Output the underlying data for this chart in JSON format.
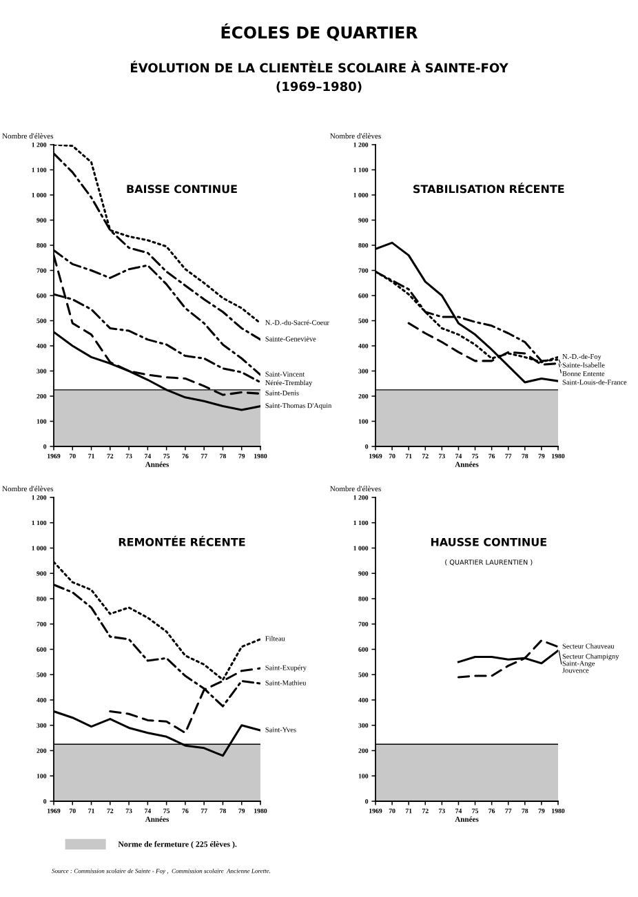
{
  "chart_data": [
    {
      "type": "line",
      "title": "BAISSE CONTINUE",
      "xlabel": "Années",
      "ylabel": "Nombre d'élèves",
      "annotations": [
        "ÉCOLES DE QUARTIER",
        "ÉVOLUTION DE LA CLIENTÈLE SCOLAIRE À SAINTE-FOY",
        "(1969–1980)"
      ],
      "x": [
        1969,
        1970,
        1971,
        1972,
        1973,
        1974,
        1975,
        1976,
        1977,
        1978,
        1979,
        1980
      ],
      "series": [
        {
          "name": "N.-D.-du-Sacré-Coeur",
          "color": "#000000",
          "line_style": "dotted",
          "values": [
            1200,
            1195,
            1130,
            860,
            835,
            820,
            795,
            705,
            650,
            590,
            550,
            490
          ]
        },
        {
          "name": "Sainte-Geneviève",
          "color": "#000000",
          "line_style": "dashdot",
          "values": [
            1165,
            1090,
            990,
            860,
            790,
            770,
            695,
            640,
            585,
            535,
            470,
            425
          ]
        },
        {
          "name": "Saint-Vincent",
          "color": "#000000",
          "line_style": "dashdot",
          "values": [
            780,
            725,
            700,
            670,
            705,
            720,
            645,
            550,
            490,
            405,
            350,
            285
          ]
        },
        {
          "name": "Nérée-Tremblay",
          "color": "#000000",
          "line_style": "dashdot",
          "values": [
            605,
            585,
            545,
            470,
            460,
            425,
            405,
            360,
            350,
            310,
            295,
            255
          ]
        },
        {
          "name": "Saint-Denis",
          "color": "#000000",
          "line_style": "dashed",
          "values": [
            760,
            490,
            445,
            335,
            300,
            285,
            275,
            270,
            240,
            205,
            215,
            210
          ]
        },
        {
          "name": "Saint-Thomas D'Aquin",
          "color": "#000000",
          "line_style": "solid",
          "values": [
            455,
            400,
            355,
            330,
            300,
            265,
            225,
            195,
            180,
            160,
            145,
            160
          ]
        }
      ],
      "bands": [
        {
          "axis": "y",
          "from": 0,
          "to": 225,
          "color": "#c8c8c8"
        }
      ],
      "ref_lines": [
        {
          "axis": "y",
          "value": 225,
          "color": "#000000"
        }
      ],
      "xlim": [
        1969,
        1980
      ],
      "ylim": [
        0,
        1200
      ],
      "xticks": [
        1969,
        {
          "value": 1970,
          "label": "70"
        },
        {
          "value": 1971,
          "label": "71"
        },
        {
          "value": 1972,
          "label": "72"
        },
        {
          "value": 1973,
          "label": "73"
        },
        {
          "value": 1974,
          "label": "74"
        },
        {
          "value": 1975,
          "label": "75"
        },
        {
          "value": 1976,
          "label": "76"
        },
        {
          "value": 1977,
          "label": "77"
        },
        {
          "value": 1978,
          "label": "78"
        },
        {
          "value": 1979,
          "label": "79"
        },
        1980
      ],
      "yticks": [
        0,
        100,
        200,
        300,
        400,
        500,
        600,
        700,
        800,
        900,
        {
          "value": 1000,
          "label": "1 000"
        },
        {
          "value": 1100,
          "label": "1 100"
        },
        {
          "value": 1200,
          "label": "1 200"
        }
      ],
      "grid": false
    },
    {
      "type": "line",
      "title": "STABILISATION RÉCENTE",
      "xlabel": "Années",
      "ylabel": "Nombre d'élèves",
      "x": [
        1969,
        1970,
        1971,
        1972,
        1973,
        1974,
        1975,
        1976,
        1977,
        1978,
        1979,
        1980
      ],
      "series": [
        {
          "name": "Sainte-Isabelle",
          "color": "#000000",
          "line_style": "dashdot",
          "values": [
            695,
            660,
            625,
            535,
            515,
            515,
            495,
            480,
            450,
            415,
            340,
            345
          ]
        },
        {
          "name": "N.-D.-de-Foy",
          "color": "#000000",
          "line_style": "dotted",
          "values": [
            695,
            655,
            605,
            535,
            470,
            445,
            405,
            350,
            370,
            355,
            335,
            355
          ]
        },
        {
          "name": "Bonne Entente",
          "color": "#000000",
          "line_style": "dashed",
          "x": [
            1971,
            1972,
            1973,
            1974,
            1975,
            1976,
            1977,
            1978,
            1979,
            1980
          ],
          "values": [
            490,
            450,
            415,
            375,
            340,
            340,
            375,
            370,
            325,
            330
          ]
        },
        {
          "name": "Saint-Louis-de-France",
          "color": "#000000",
          "line_style": "solid",
          "values": [
            785,
            810,
            760,
            655,
            600,
            490,
            445,
            385,
            320,
            255,
            270,
            260
          ]
        }
      ],
      "bands": [
        {
          "axis": "y",
          "from": 0,
          "to": 225,
          "color": "#c8c8c8"
        }
      ],
      "ref_lines": [
        {
          "axis": "y",
          "value": 225,
          "color": "#000000"
        }
      ],
      "xlim": [
        1969,
        1980
      ],
      "ylim": [
        0,
        1200
      ],
      "xticks": [
        1969,
        {
          "value": 1970,
          "label": "70"
        },
        {
          "value": 1971,
          "label": "71"
        },
        {
          "value": 1972,
          "label": "72"
        },
        {
          "value": 1973,
          "label": "73"
        },
        {
          "value": 1974,
          "label": "74"
        },
        {
          "value": 1975,
          "label": "75"
        },
        {
          "value": 1976,
          "label": "76"
        },
        {
          "value": 1977,
          "label": "77"
        },
        {
          "value": 1978,
          "label": "78"
        },
        {
          "value": 1979,
          "label": "79"
        },
        1980
      ],
      "yticks": [
        0,
        100,
        200,
        300,
        400,
        500,
        600,
        700,
        800,
        900,
        {
          "value": 1000,
          "label": "1 000"
        },
        {
          "value": 1100,
          "label": "1 100"
        },
        {
          "value": 1200,
          "label": "1 200"
        }
      ],
      "grid": false
    },
    {
      "type": "line",
      "title": "REMONTÉE RÉCENTE",
      "xlabel": "Années",
      "ylabel": "Nombre d'élèves",
      "annotations": [
        "Source : Commission scolaire de Sainte - Foy ,  Commission scolaire  Ancienne Lorette."
      ],
      "x": [
        1969,
        1970,
        1971,
        1972,
        1973,
        1974,
        1975,
        1976,
        1977,
        1978,
        1979,
        1980
      ],
      "series": [
        {
          "name": "Filteau",
          "color": "#000000",
          "line_style": "dotted",
          "values": [
            945,
            865,
            835,
            740,
            765,
            725,
            670,
            575,
            540,
            480,
            610,
            640
          ]
        },
        {
          "name": "Saint-Exupéry",
          "color": "#000000",
          "line_style": "dashed",
          "x": [
            1972,
            1973,
            1974,
            1975,
            1976,
            1977,
            1978,
            1979,
            1980
          ],
          "values": [
            355,
            345,
            320,
            315,
            270,
            440,
            475,
            515,
            525
          ]
        },
        {
          "name": "Saint-Mathieu",
          "color": "#000000",
          "line_style": "dashdot",
          "values": [
            855,
            825,
            765,
            650,
            640,
            555,
            565,
            495,
            445,
            375,
            475,
            465
          ]
        },
        {
          "name": "Saint-Yves",
          "color": "#000000",
          "line_style": "solid",
          "values": [
            355,
            330,
            295,
            325,
            290,
            270,
            255,
            220,
            210,
            180,
            300,
            280
          ]
        }
      ],
      "bands": [
        {
          "axis": "y",
          "from": 0,
          "to": 225,
          "color": "#c8c8c8",
          "label": "Norme de fermeture ( 225 élèves )."
        }
      ],
      "ref_lines": [
        {
          "axis": "y",
          "value": 225,
          "color": "#000000"
        }
      ],
      "xlim": [
        1969,
        1980
      ],
      "ylim": [
        0,
        1200
      ],
      "xticks": [
        1969,
        {
          "value": 1970,
          "label": "70"
        },
        {
          "value": 1971,
          "label": "71"
        },
        {
          "value": 1972,
          "label": "72"
        },
        {
          "value": 1973,
          "label": "73"
        },
        {
          "value": 1974,
          "label": "74"
        },
        {
          "value": 1975,
          "label": "75"
        },
        {
          "value": 1976,
          "label": "76"
        },
        {
          "value": 1977,
          "label": "77"
        },
        {
          "value": 1978,
          "label": "78"
        },
        {
          "value": 1979,
          "label": "79"
        },
        1980
      ],
      "yticks": [
        0,
        100,
        200,
        300,
        400,
        500,
        600,
        700,
        800,
        900,
        {
          "value": 1000,
          "label": "1 000"
        },
        {
          "value": 1100,
          "label": "1 100"
        },
        {
          "value": 1200,
          "label": "1 200"
        }
      ],
      "grid": false
    },
    {
      "type": "line",
      "title": "HAUSSE CONTINUE",
      "subtitle": "( QUARTIER LAURENTIEN )",
      "xlabel": "Années",
      "ylabel": "Nombre d'élèves",
      "x": [
        1974,
        1975,
        1976,
        1977,
        1978,
        1979,
        1980
      ],
      "series": [
        {
          "name": "Secteur Chauveau",
          "color": "#000000",
          "line_style": "dashed",
          "values": [
            490,
            495,
            495,
            535,
            565,
            635,
            610
          ]
        },
        {
          "name": "Secteur Champigny\nSaint-Ange\nJouvence",
          "color": "#000000",
          "line_style": "solid",
          "values": [
            550,
            570,
            570,
            560,
            565,
            545,
            595
          ]
        }
      ],
      "bands": [
        {
          "axis": "y",
          "from": 0,
          "to": 225,
          "color": "#c8c8c8"
        }
      ],
      "ref_lines": [
        {
          "axis": "y",
          "value": 225,
          "color": "#000000"
        }
      ],
      "xlim": [
        1969,
        1980
      ],
      "ylim": [
        0,
        1200
      ],
      "xticks": [
        1969,
        {
          "value": 1970,
          "label": "70"
        },
        {
          "value": 1971,
          "label": "71"
        },
        {
          "value": 1972,
          "label": "72"
        },
        {
          "value": 1973,
          "label": "73"
        },
        {
          "value": 1974,
          "label": "74"
        },
        {
          "value": 1975,
          "label": "75"
        },
        {
          "value": 1976,
          "label": "76"
        },
        {
          "value": 1977,
          "label": "77"
        },
        {
          "value": 1978,
          "label": "78"
        },
        {
          "value": 1979,
          "label": "79"
        },
        1980
      ],
      "yticks": [
        0,
        100,
        200,
        300,
        400,
        500,
        600,
        700,
        800,
        900,
        {
          "value": 1000,
          "label": "1 000"
        },
        {
          "value": 1100,
          "label": "1 100"
        },
        {
          "value": 1200,
          "label": "1 200"
        }
      ],
      "grid": false
    }
  ]
}
